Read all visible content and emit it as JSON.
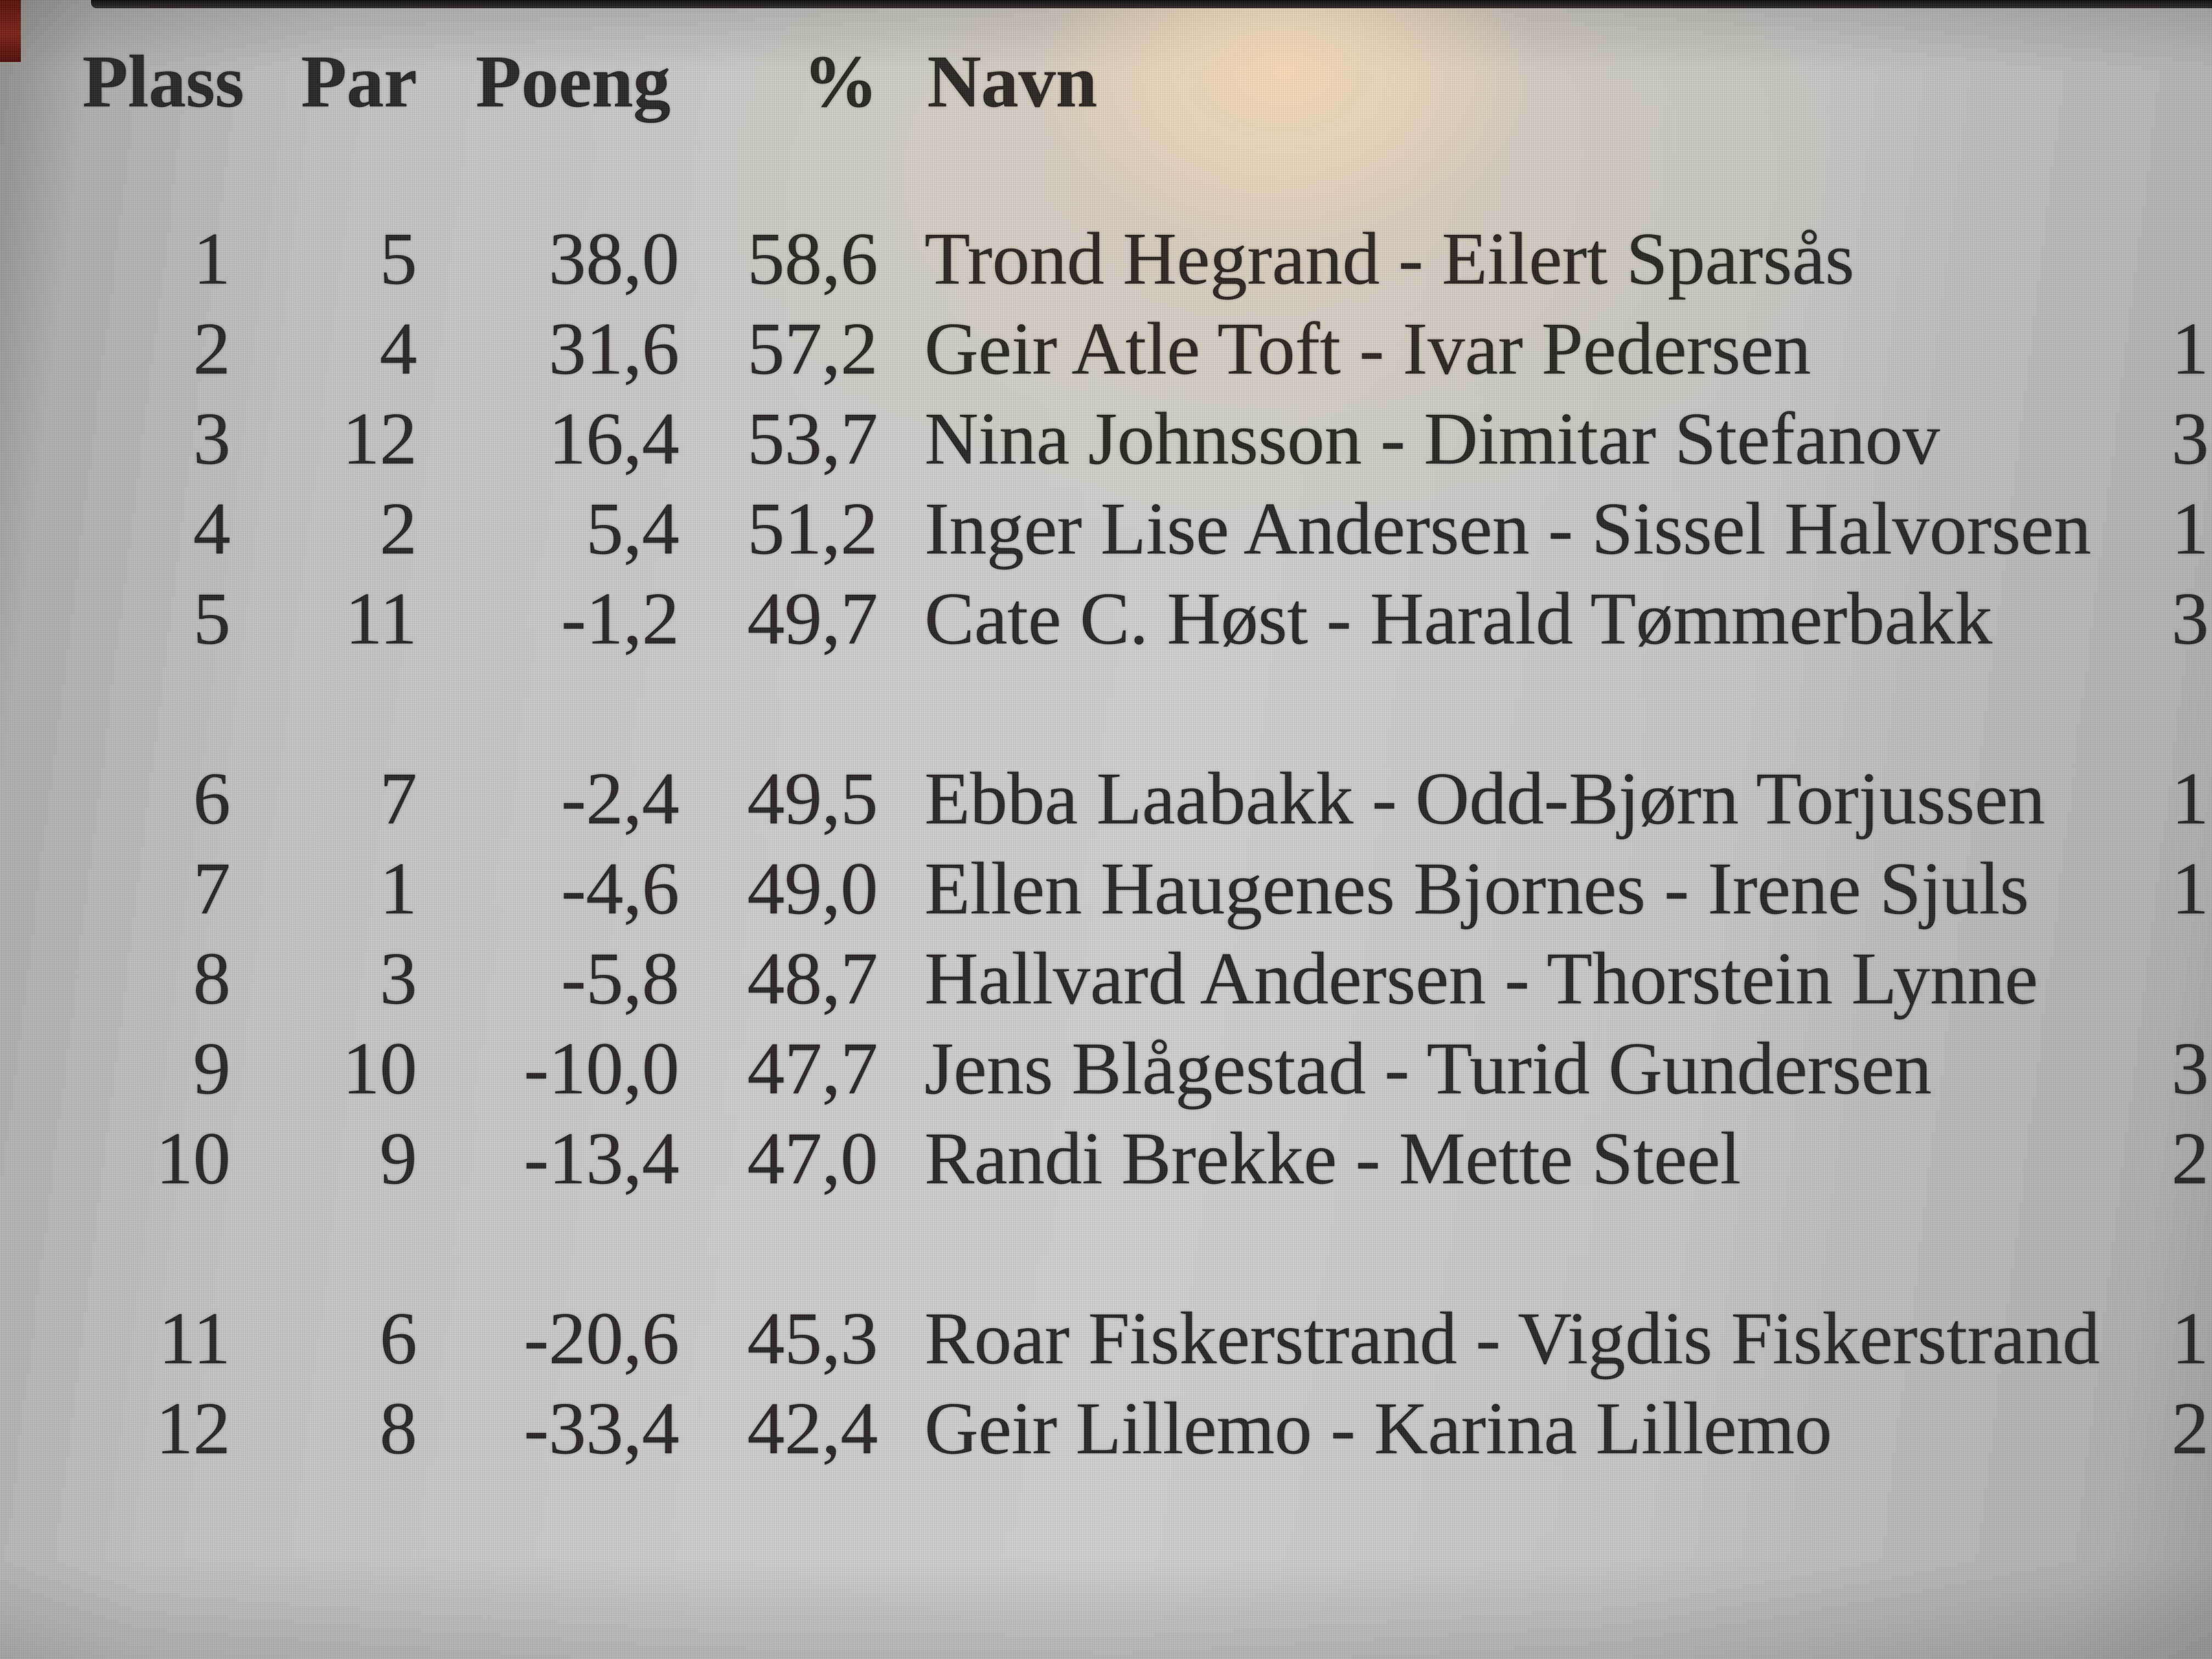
{
  "colors": {
    "page_bg": "#cbcac5",
    "text": "#2b2622",
    "top_edge_bar": "#1c171b",
    "corner_patch": "#6b1c11",
    "reflection_glow": "#f6d3a4"
  },
  "table": {
    "headers": {
      "plass": "Plass",
      "par": "Par",
      "poeng": "Poeng",
      "pct": "%",
      "navn": "Navn"
    },
    "rows": [
      {
        "plass": "1",
        "par": "5",
        "poeng": "38,0",
        "pct": "58,6",
        "navn": "Trond Hegrand - Eilert Sparsås",
        "edge": ""
      },
      {
        "plass": "2",
        "par": "4",
        "poeng": "31,6",
        "pct": "57,2",
        "navn": "Geir Atle Toft - Ivar Pedersen",
        "edge": "1"
      },
      {
        "plass": "3",
        "par": "12",
        "poeng": "16,4",
        "pct": "53,7",
        "navn": "Nina Johnsson - Dimitar Stefanov",
        "edge": "3"
      },
      {
        "plass": "4",
        "par": "2",
        "poeng": "5,4",
        "pct": "51,2",
        "navn": "Inger Lise Andersen - Sissel Halvorsen",
        "edge": "1"
      },
      {
        "plass": "5",
        "par": "11",
        "poeng": "-1,2",
        "pct": "49,7",
        "navn": "Cate C. Høst - Harald Tømmerbakk",
        "edge": "3"
      },
      {
        "plass": "6",
        "par": "7",
        "poeng": "-2,4",
        "pct": "49,5",
        "navn": "Ebba Laabakk - Odd-Bjørn Torjussen",
        "edge": "1"
      },
      {
        "plass": "7",
        "par": "1",
        "poeng": "-4,6",
        "pct": "49,0",
        "navn": "Ellen Haugenes Bjornes - Irene Sjuls",
        "edge": "1"
      },
      {
        "plass": "8",
        "par": "3",
        "poeng": "-5,8",
        "pct": "48,7",
        "navn": "Hallvard Andersen - Thorstein Lynne",
        "edge": ""
      },
      {
        "plass": "9",
        "par": "10",
        "poeng": "-10,0",
        "pct": "47,7",
        "navn": "Jens Blågestad - Turid Gundersen",
        "edge": "3"
      },
      {
        "plass": "10",
        "par": "9",
        "poeng": "-13,4",
        "pct": "47,0",
        "navn": "Randi Brekke - Mette Steel",
        "edge": "2"
      },
      {
        "plass": "11",
        "par": "6",
        "poeng": "-20,6",
        "pct": "45,3",
        "navn": "Roar Fiskerstrand - Vigdis Fiskerstrand",
        "edge": "1"
      },
      {
        "plass": "12",
        "par": "8",
        "poeng": "-33,4",
        "pct": "42,4",
        "navn": "Geir Lillemo - Karina Lillemo",
        "edge": "2"
      }
    ]
  }
}
